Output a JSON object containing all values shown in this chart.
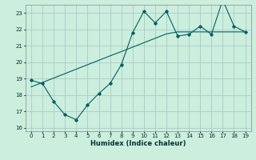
{
  "xlabel": "Humidex (Indice chaleur)",
  "x": [
    0,
    1,
    2,
    3,
    4,
    5,
    6,
    7,
    8,
    9,
    10,
    11,
    12,
    13,
    14,
    15,
    16,
    17,
    18,
    19
  ],
  "y_line": [
    18.9,
    18.7,
    17.6,
    16.8,
    16.5,
    17.4,
    18.1,
    18.7,
    19.85,
    21.8,
    23.1,
    22.4,
    23.1,
    21.6,
    21.7,
    22.2,
    21.7,
    23.8,
    22.2,
    21.85
  ],
  "y_trend": [
    18.5,
    18.77,
    19.04,
    19.31,
    19.58,
    19.85,
    20.12,
    20.39,
    20.65,
    20.92,
    21.19,
    21.46,
    21.73,
    21.85,
    21.85,
    21.85,
    21.85,
    21.85,
    21.85,
    21.85
  ],
  "line_color": "#006060",
  "bg_color": "#cceedd",
  "grid_color": "#aacccc",
  "ylim": [
    15.8,
    23.5
  ],
  "xlim": [
    -0.5,
    19.5
  ],
  "yticks": [
    16,
    17,
    18,
    19,
    20,
    21,
    22,
    23
  ],
  "xticks": [
    0,
    1,
    2,
    3,
    4,
    5,
    6,
    7,
    8,
    9,
    10,
    11,
    12,
    13,
    14,
    15,
    16,
    17,
    18,
    19
  ]
}
